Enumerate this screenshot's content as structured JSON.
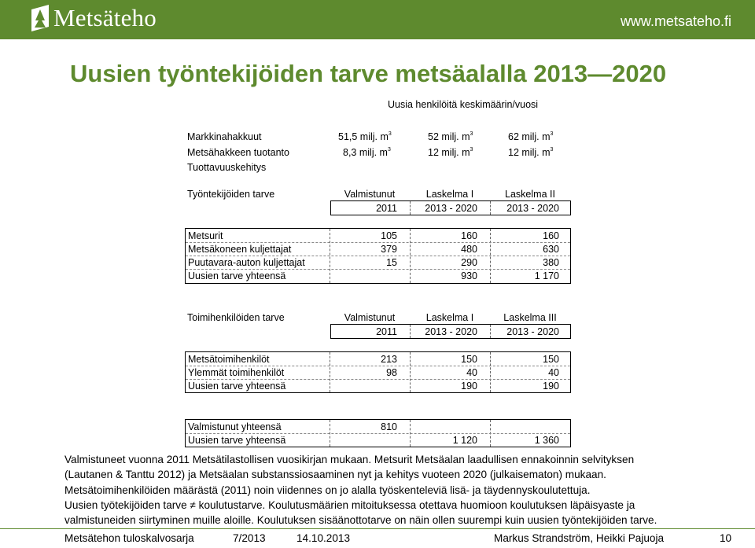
{
  "header": {
    "logo_text": "Metsäteho",
    "url": "www.metsateho.fi",
    "accent_color": "#5e8a2e"
  },
  "title": "Uusien työntekijöiden tarve metsäalalla 2013—2020",
  "table": {
    "caption": "Uusia henkilöitä keskimäärin/vuosi",
    "assumptions": {
      "rows": [
        {
          "label": "Markkinahakkuut",
          "c1": "51,5 milj. m",
          "c2": "52 milj. m",
          "c3": "62 milj. m",
          "sup": "3"
        },
        {
          "label": "Metsähakkeen tuotanto",
          "c1": "8,3 milj. m",
          "c2": "12 milj. m",
          "c3": "12 milj. m",
          "sup": "3"
        },
        {
          "label": "Tuottavuuskehitys"
        }
      ]
    },
    "workers": {
      "header": {
        "label": "Työntekijöiden tarve",
        "c1": "Valmistunut",
        "c2": "Laskelma I",
        "c3": "Laskelma II"
      },
      "years": {
        "c1": "2011",
        "c2": "2013 - 2020",
        "c3": "2013 - 2020"
      },
      "rows": [
        {
          "label": "Metsurit",
          "c1": "105",
          "c2": "160",
          "c3": "160"
        },
        {
          "label": "Metsäkoneen kuljettajat",
          "c1": "379",
          "c2": "480",
          "c3": "630"
        },
        {
          "label": "Puutavara-auton kuljettajat",
          "c1": "15",
          "c2": "290",
          "c3": "380"
        },
        {
          "label": "Uusien tarve yhteensä",
          "c1": "",
          "c2": "930",
          "c3": "1 170"
        }
      ]
    },
    "officials": {
      "header": {
        "label": "Toimihenkilöiden tarve",
        "c1": "Valmistunut",
        "c2": "Laskelma I",
        "c3": "Laskelma III"
      },
      "years": {
        "c1": "2011",
        "c2": "2013 - 2020",
        "c3": "2013 - 2020"
      },
      "rows": [
        {
          "label": "Metsätoimihenkilöt",
          "c1": "213",
          "c2": "150",
          "c3": "150"
        },
        {
          "label": "Ylemmät toimihenkilöt",
          "c1": "98",
          "c2": "40",
          "c3": "40"
        },
        {
          "label": "Uusien tarve yhteensä",
          "c1": "",
          "c2": "190",
          "c3": "190"
        }
      ]
    },
    "totals": {
      "rows": [
        {
          "label": "Valmistunut yhteensä",
          "c1": "810",
          "c2": "",
          "c3": ""
        },
        {
          "label": "Uusien tarve yhteensä",
          "c1": "",
          "c2": "1 120",
          "c3": "1 360"
        }
      ]
    }
  },
  "notes": [
    "Valmistuneet vuonna 2011 Metsätilastollisen vuosikirjan mukaan. Metsurit Metsäalan laadullisen ennakoinnin selvityksen",
    "(Lautanen & Tanttu 2012) ja Metsäalan substanssiosaaminen nyt ja kehitys vuoteen 2020 (julkaisematon) mukaan.",
    "Metsätoimihenkilöiden määrästä (2011) noin viidennes on jo alalla työskenteleviä lisä- ja täydennyskoulutettuja.",
    "Uusien työtekijöiden tarve ≠ koulutustarve. Koulutusmäärien mitoituksessa otettava huomioon koulutuksen läpäisyaste ja",
    "valmistuneiden siirtyminen muille aloille. Koulutuksen sisäänottotarve on näin ollen suurempi kuin uusien työntekijöiden tarve."
  ],
  "footer": {
    "series": "Metsätehon tuloskalvosarja",
    "number": "7/2013",
    "date": "14.10.2013",
    "authors": "Markus Strandström, Heikki Pajuoja",
    "page": "10"
  }
}
